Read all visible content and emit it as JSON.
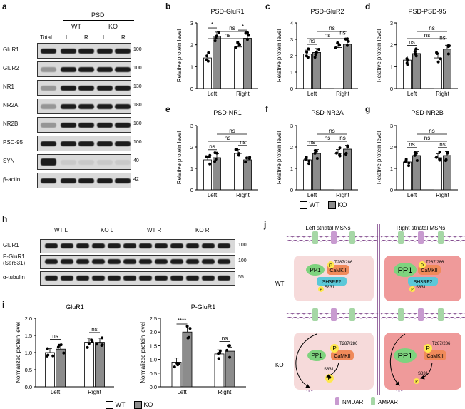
{
  "panels": {
    "a": "a",
    "b": "b",
    "c": "c",
    "d": "d",
    "e": "e",
    "f": "f",
    "g": "g",
    "h": "h",
    "i": "i",
    "j": "j"
  },
  "blot_a": {
    "header_psd": "PSD",
    "header_wt": "WT",
    "header_ko": "KO",
    "col_total": "Total",
    "col_l1": "L",
    "col_r1": "R",
    "col_l2": "L",
    "col_r2": "R",
    "rows": [
      {
        "label": "GluR1",
        "mw": "100"
      },
      {
        "label": "GluR2",
        "mw": "100"
      },
      {
        "label": "NR1",
        "mw": "130"
      },
      {
        "label": "NR2A",
        "mw": "180"
      },
      {
        "label": "NR2B",
        "mw": "180"
      },
      {
        "label": "PSD-95",
        "mw": "100"
      },
      {
        "label": "SYN",
        "mw": "40"
      },
      {
        "label": "β-actin",
        "mw": "42"
      }
    ]
  },
  "blot_h": {
    "groups": [
      "WT L",
      "KO L",
      "WT R",
      "KO R"
    ],
    "rows": [
      {
        "label": "GluR1",
        "mw": "100"
      },
      {
        "label": "P-GluR1\n(Ser831)",
        "mw": "100"
      },
      {
        "label": "α-tubulin",
        "mw": "55"
      }
    ]
  },
  "colors": {
    "wt": "#ffffff",
    "ko": "#8c8c8c",
    "cell_wt": "#f6dada",
    "cell_ko": "#ef9a9a",
    "pp1": "#7ed37e",
    "camkii": "#f08a5a",
    "sh3": "#5bc8d8",
    "p": "#ffe84d"
  },
  "legend": {
    "wt": "WT",
    "ko": "KO"
  },
  "ns": "ns",
  "star": "*",
  "star4": "****",
  "chart_data": [
    {
      "id": "b",
      "type": "bar",
      "title": "PSD-GluR1",
      "ylabel": "Relative protein level",
      "categories": [
        "Left",
        "Right"
      ],
      "ylim": [
        0,
        3
      ],
      "yticks": [
        0,
        1,
        2,
        3
      ],
      "series": [
        {
          "name": "WT",
          "values": [
            1.4,
            1.9
          ]
        },
        {
          "name": "KO",
          "values": [
            2.4,
            2.3
          ]
        }
      ],
      "annotations": [
        "*",
        "*",
        "ns",
        "ns"
      ]
    },
    {
      "id": "c",
      "type": "bar",
      "title": "PSD-GluR2",
      "ylabel": "Relative protein level",
      "categories": [
        "Left",
        "Right"
      ],
      "ylim": [
        0,
        4
      ],
      "yticks": [
        0,
        1,
        2,
        3,
        4
      ],
      "series": [
        {
          "name": "WT",
          "values": [
            2.1,
            2.5
          ]
        },
        {
          "name": "KO",
          "values": [
            2.2,
            2.7
          ]
        }
      ],
      "annotations": [
        "ns",
        "ns",
        "ns",
        "ns"
      ]
    },
    {
      "id": "d",
      "type": "bar",
      "title": "PSD-PSD-95",
      "ylabel": "Relative protein level",
      "categories": [
        "Left",
        "Right"
      ],
      "ylim": [
        0,
        3
      ],
      "yticks": [
        0,
        1,
        2,
        3
      ],
      "series": [
        {
          "name": "WT",
          "values": [
            1.3,
            1.4
          ]
        },
        {
          "name": "KO",
          "values": [
            1.6,
            1.8
          ]
        }
      ],
      "annotations": [
        "ns",
        "ns",
        "ns",
        "ns"
      ]
    },
    {
      "id": "e",
      "type": "bar",
      "title": "PSD-NR1",
      "ylabel": "Relative protein level",
      "categories": [
        "Left",
        "Right"
      ],
      "ylim": [
        0,
        3
      ],
      "yticks": [
        0,
        1,
        2,
        3
      ],
      "series": [
        {
          "name": "WT",
          "values": [
            1.4,
            1.7
          ]
        },
        {
          "name": "KO",
          "values": [
            1.5,
            1.4
          ]
        }
      ],
      "annotations": [
        "ns",
        "ns",
        "ns",
        "ns"
      ]
    },
    {
      "id": "f",
      "type": "bar",
      "title": "PSD-NR2A",
      "ylabel": "Relative protein level",
      "categories": [
        "Left",
        "Right"
      ],
      "ylim": [
        0,
        3
      ],
      "yticks": [
        0,
        1,
        2,
        3
      ],
      "series": [
        {
          "name": "WT",
          "values": [
            1.4,
            1.7
          ]
        },
        {
          "name": "KO",
          "values": [
            1.7,
            1.9
          ]
        }
      ],
      "annotations": [
        "ns",
        "ns",
        "ns",
        "ns"
      ]
    },
    {
      "id": "g",
      "type": "bar",
      "title": "PSD-NR2B",
      "ylabel": "Relative protein level",
      "categories": [
        "Left",
        "Right"
      ],
      "ylim": [
        0,
        3
      ],
      "yticks": [
        0,
        1,
        2,
        3
      ],
      "series": [
        {
          "name": "WT",
          "values": [
            1.3,
            1.5
          ]
        },
        {
          "name": "KO",
          "values": [
            1.6,
            1.6
          ]
        }
      ],
      "annotations": [
        "ns",
        "ns",
        "ns",
        "ns"
      ]
    },
    {
      "id": "i1",
      "type": "bar",
      "title": "GluR1",
      "ylabel": "Normalized protein level",
      "categories": [
        "Left",
        "Right"
      ],
      "ylim": [
        0,
        2.0
      ],
      "yticks": [
        0.0,
        0.5,
        1.0,
        1.5,
        2.0
      ],
      "series": [
        {
          "name": "WT",
          "values": [
            1.0,
            1.3
          ]
        },
        {
          "name": "KO",
          "values": [
            1.1,
            1.3
          ]
        }
      ],
      "annotations": [
        "ns",
        "ns"
      ]
    },
    {
      "id": "i2",
      "type": "bar",
      "title": "P-GluR1",
      "ylabel": "Normalized protein level",
      "categories": [
        "Left",
        "Right"
      ],
      "ylim": [
        0,
        2.5
      ],
      "yticks": [
        0.0,
        0.5,
        1.0,
        1.5,
        2.0,
        2.5
      ],
      "series": [
        {
          "name": "WT",
          "values": [
            0.9,
            1.2
          ]
        },
        {
          "name": "KO",
          "values": [
            2.0,
            1.3
          ]
        }
      ],
      "annotations": [
        "****",
        "ns"
      ]
    }
  ],
  "schematic": {
    "left_title": "Left striatal MSNs",
    "right_title": "Right striatal MSNs",
    "wt": "WT",
    "ko": "KO",
    "pp1": "PP1",
    "camkii": "CaMKII",
    "sh3rf2": "SH3RF2",
    "p": "P",
    "t287": "T287/286",
    "s831": "S831",
    "nmdar": "NMDAR",
    "ampar": "AMPAR"
  }
}
